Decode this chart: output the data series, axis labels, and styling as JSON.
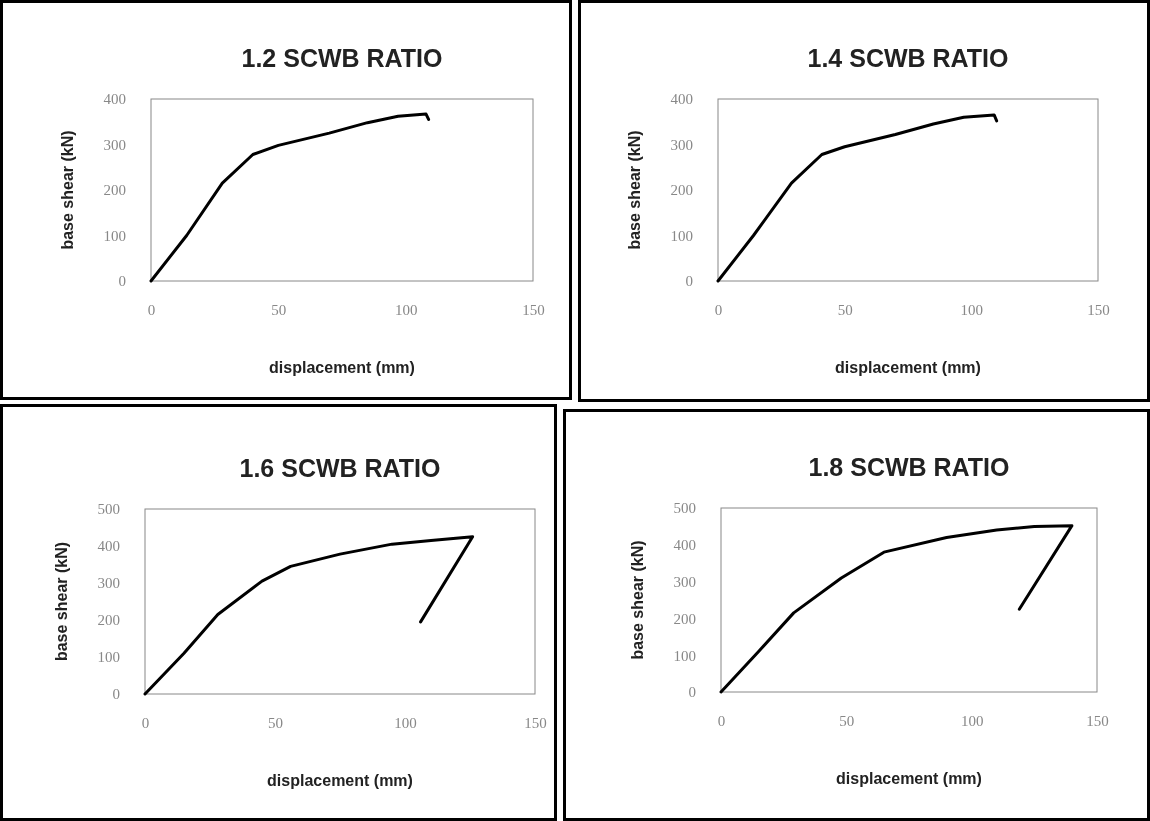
{
  "chart_data": [
    {
      "type": "line",
      "title": "1.2 SCWB RATIO",
      "xlabel": "displacement (mm)",
      "ylabel": "base shear (kN)",
      "xlim": [
        0,
        150
      ],
      "xticks": [
        0,
        50,
        100,
        150
      ],
      "ylim": [
        0,
        400
      ],
      "yticks": [
        0,
        100,
        200,
        300,
        400
      ],
      "grid": false,
      "marker": "none",
      "line_style": "solid",
      "series": [
        {
          "color": "#000000",
          "x": [
            0,
            14,
            28,
            40,
            50,
            70,
            85,
            97,
            108,
            109
          ],
          "values": [
            0,
            100,
            215,
            278,
            298,
            325,
            348,
            362,
            367,
            355
          ]
        }
      ]
    },
    {
      "type": "line",
      "title": "1.4 SCWB RATIO",
      "xlabel": "displacement (mm)",
      "ylabel": "base shear (kN)",
      "xlim": [
        0,
        150
      ],
      "xticks": [
        0,
        50,
        100,
        150
      ],
      "ylim": [
        0,
        400
      ],
      "yticks": [
        0,
        100,
        200,
        300,
        400
      ],
      "grid": false,
      "marker": "none",
      "line_style": "solid",
      "series": [
        {
          "color": "#000000",
          "x": [
            0,
            14,
            29,
            41,
            50,
            70,
            85,
            97,
            109,
            110
          ],
          "values": [
            0,
            100,
            215,
            278,
            295,
            322,
            345,
            360,
            365,
            352
          ]
        }
      ]
    },
    {
      "type": "line",
      "title": "1.6 SCWB RATIO",
      "xlabel": "displacement (mm)",
      "ylabel": "base shear (kN)",
      "xlim": [
        0,
        150
      ],
      "xticks": [
        0,
        50,
        100,
        150
      ],
      "ylim": [
        0,
        500
      ],
      "yticks": [
        0,
        100,
        200,
        300,
        400,
        500
      ],
      "grid": false,
      "marker": "none",
      "line_style": "solid",
      "series": [
        {
          "color": "#000000",
          "x": [
            0,
            15,
            28,
            45,
            56,
            75,
            95,
            110,
            126,
            106
          ],
          "values": [
            0,
            110,
            215,
            305,
            345,
            378,
            405,
            415,
            425,
            195
          ]
        }
      ]
    },
    {
      "type": "line",
      "title": "1.8 SCWB RATIO",
      "xlabel": "displacement (mm)",
      "ylabel": "base shear (kN)",
      "xlim": [
        0,
        150
      ],
      "xticks": [
        0,
        50,
        100,
        150
      ],
      "ylim": [
        0,
        500
      ],
      "yticks": [
        0,
        100,
        200,
        300,
        400,
        500
      ],
      "grid": false,
      "marker": "none",
      "line_style": "solid",
      "series": [
        {
          "color": "#000000",
          "x": [
            0,
            15,
            29,
            48,
            65,
            90,
            110,
            125,
            140,
            119
          ],
          "values": [
            0,
            110,
            215,
            310,
            380,
            420,
            440,
            450,
            452,
            225
          ]
        }
      ]
    }
  ]
}
